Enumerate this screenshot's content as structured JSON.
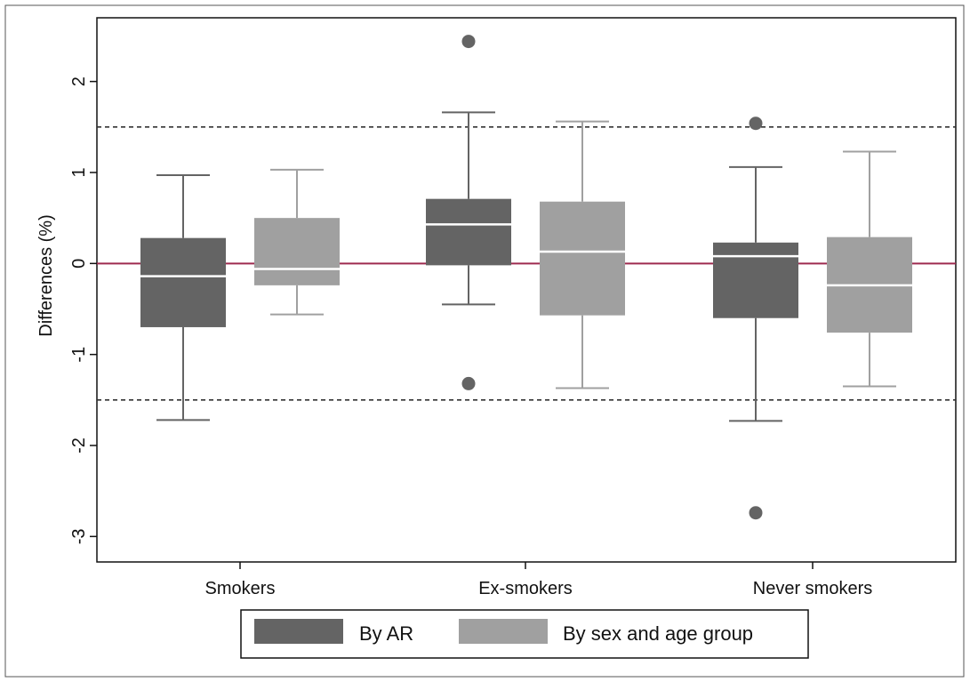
{
  "chart_data": {
    "type": "boxplot",
    "title": "",
    "xlabel": "",
    "ylabel": "Differences (%)",
    "ylim": [
      -3.28,
      2.7
    ],
    "yticks": [
      -3,
      -2,
      -1,
      0,
      1,
      2
    ],
    "ytick_labels": [
      "-3",
      "-2",
      "-1",
      "0",
      "1",
      "2"
    ],
    "categories": [
      "Smokers",
      "Ex-smokers",
      "Never smokers"
    ],
    "grid": false,
    "legend_position": "bottom",
    "reference_lines": [
      {
        "y": 0,
        "style": "solid",
        "color": "#9e2a4f"
      },
      {
        "y": 1.5,
        "style": "dashed",
        "color": "#333333"
      },
      {
        "y": -1.5,
        "style": "dashed",
        "color": "#333333"
      }
    ],
    "series": [
      {
        "name": "By AR",
        "color": "#646464",
        "boxes": [
          {
            "whisker_low": -1.72,
            "q1": -0.7,
            "median": -0.14,
            "q3": 0.28,
            "whisker_high": 0.97,
            "outliers": []
          },
          {
            "whisker_low": -0.45,
            "q1": -0.02,
            "median": 0.43,
            "q3": 0.71,
            "whisker_high": 1.66,
            "outliers": [
              2.44,
              -1.32
            ]
          },
          {
            "whisker_low": -1.73,
            "q1": -0.6,
            "median": 0.08,
            "q3": 0.23,
            "whisker_high": 1.06,
            "outliers": [
              1.54,
              -2.74
            ]
          }
        ]
      },
      {
        "name": "By sex and age group",
        "color": "#a0a0a0",
        "boxes": [
          {
            "whisker_low": -0.56,
            "q1": -0.24,
            "median": -0.06,
            "q3": 0.5,
            "whisker_high": 1.03,
            "outliers": []
          },
          {
            "whisker_low": -1.37,
            "q1": -0.57,
            "median": 0.13,
            "q3": 0.68,
            "whisker_high": 1.56,
            "outliers": []
          },
          {
            "whisker_low": -1.35,
            "q1": -0.76,
            "median": -0.24,
            "q3": 0.29,
            "whisker_high": 1.23,
            "outliers": []
          }
        ]
      }
    ]
  }
}
